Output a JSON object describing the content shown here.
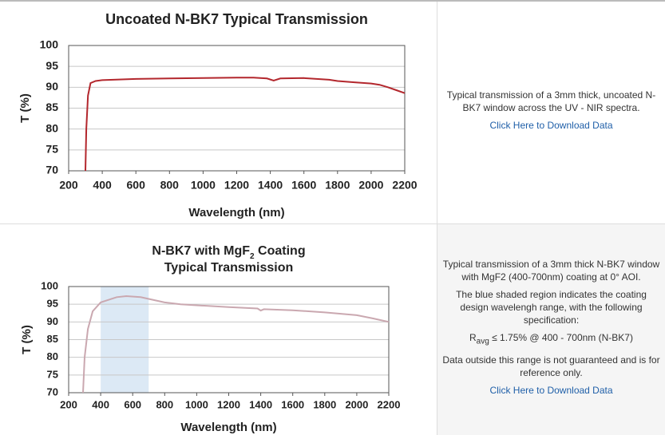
{
  "chart_data": [
    {
      "type": "line",
      "title": "Uncoated N-BK7 Typical Transmission",
      "x_label": "Wavelength (nm)",
      "y_label": "T (%)",
      "xlim": [
        200,
        2200
      ],
      "xticks": [
        200,
        400,
        600,
        800,
        1000,
        1200,
        1400,
        1600,
        1800,
        2000,
        2200
      ],
      "ylim": [
        70,
        100
      ],
      "yticks": [
        70,
        75,
        80,
        85,
        90,
        95,
        100
      ],
      "grid": true,
      "series": [
        {
          "color": "#b3272d",
          "x": [
            300,
            305,
            315,
            330,
            360,
            400,
            600,
            800,
            1000,
            1200,
            1300,
            1380,
            1420,
            1460,
            1600,
            1750,
            1800,
            1900,
            2000,
            2050,
            2100,
            2150,
            2200
          ],
          "values": [
            70,
            80,
            88,
            91,
            91.5,
            91.7,
            92,
            92.1,
            92.2,
            92.3,
            92.3,
            92.1,
            91.6,
            92.1,
            92.2,
            91.8,
            91.5,
            91.2,
            90.9,
            90.6,
            90,
            89.3,
            88.6
          ]
        }
      ]
    },
    {
      "type": "line",
      "title": {
        "text": "N-BK7 with MgF",
        "subscript": "2",
        "rest": " Coating",
        "line2": "Typical Transmission"
      },
      "x_label": "Wavelength (nm)",
      "y_label": "T (%)",
      "xlim": [
        200,
        2200
      ],
      "xticks": [
        200,
        400,
        600,
        800,
        1000,
        1200,
        1400,
        1600,
        1800,
        2000,
        2200
      ],
      "ylim": [
        70,
        100
      ],
      "yticks": [
        70,
        75,
        80,
        85,
        90,
        95,
        100
      ],
      "grid": true,
      "shaded_region": {
        "x": [
          400,
          700
        ],
        "color": "#dce9f5"
      },
      "series": [
        {
          "color": "#caa8b0",
          "x": [
            290,
            300,
            320,
            350,
            400,
            500,
            560,
            650,
            700,
            800,
            900,
            1000,
            1200,
            1380,
            1400,
            1420,
            1600,
            1800,
            2000,
            2100,
            2150,
            2200
          ],
          "values": [
            70,
            80,
            88,
            93,
            95.5,
            97,
            97.3,
            97,
            96.5,
            95.5,
            95,
            94.7,
            94.2,
            93.8,
            93.2,
            93.6,
            93.3,
            92.7,
            91.9,
            91,
            90.5,
            90
          ]
        }
      ]
    }
  ],
  "rows": [
    {
      "description": "Typical transmission of a 3mm thick, uncoated N-BK7 window across the UV - NIR spectra.",
      "link": "Click Here to Download Data"
    },
    {
      "description": "Typical transmission of a 3mm thick N-BK7 window with MgF2 (400-700nm) coating at 0° AOI.",
      "note": "The blue shaded region indicates the coating design wavelengh range, with the following specification:",
      "spec": {
        "symbol": "R",
        "subscript": "avg",
        "text": " ≤ 1.75% @ 400 - 700nm (N-BK7)"
      },
      "disclaimer": "Data outside this range is not guaranteed and is for reference only.",
      "link": "Click Here to Download Data"
    }
  ]
}
